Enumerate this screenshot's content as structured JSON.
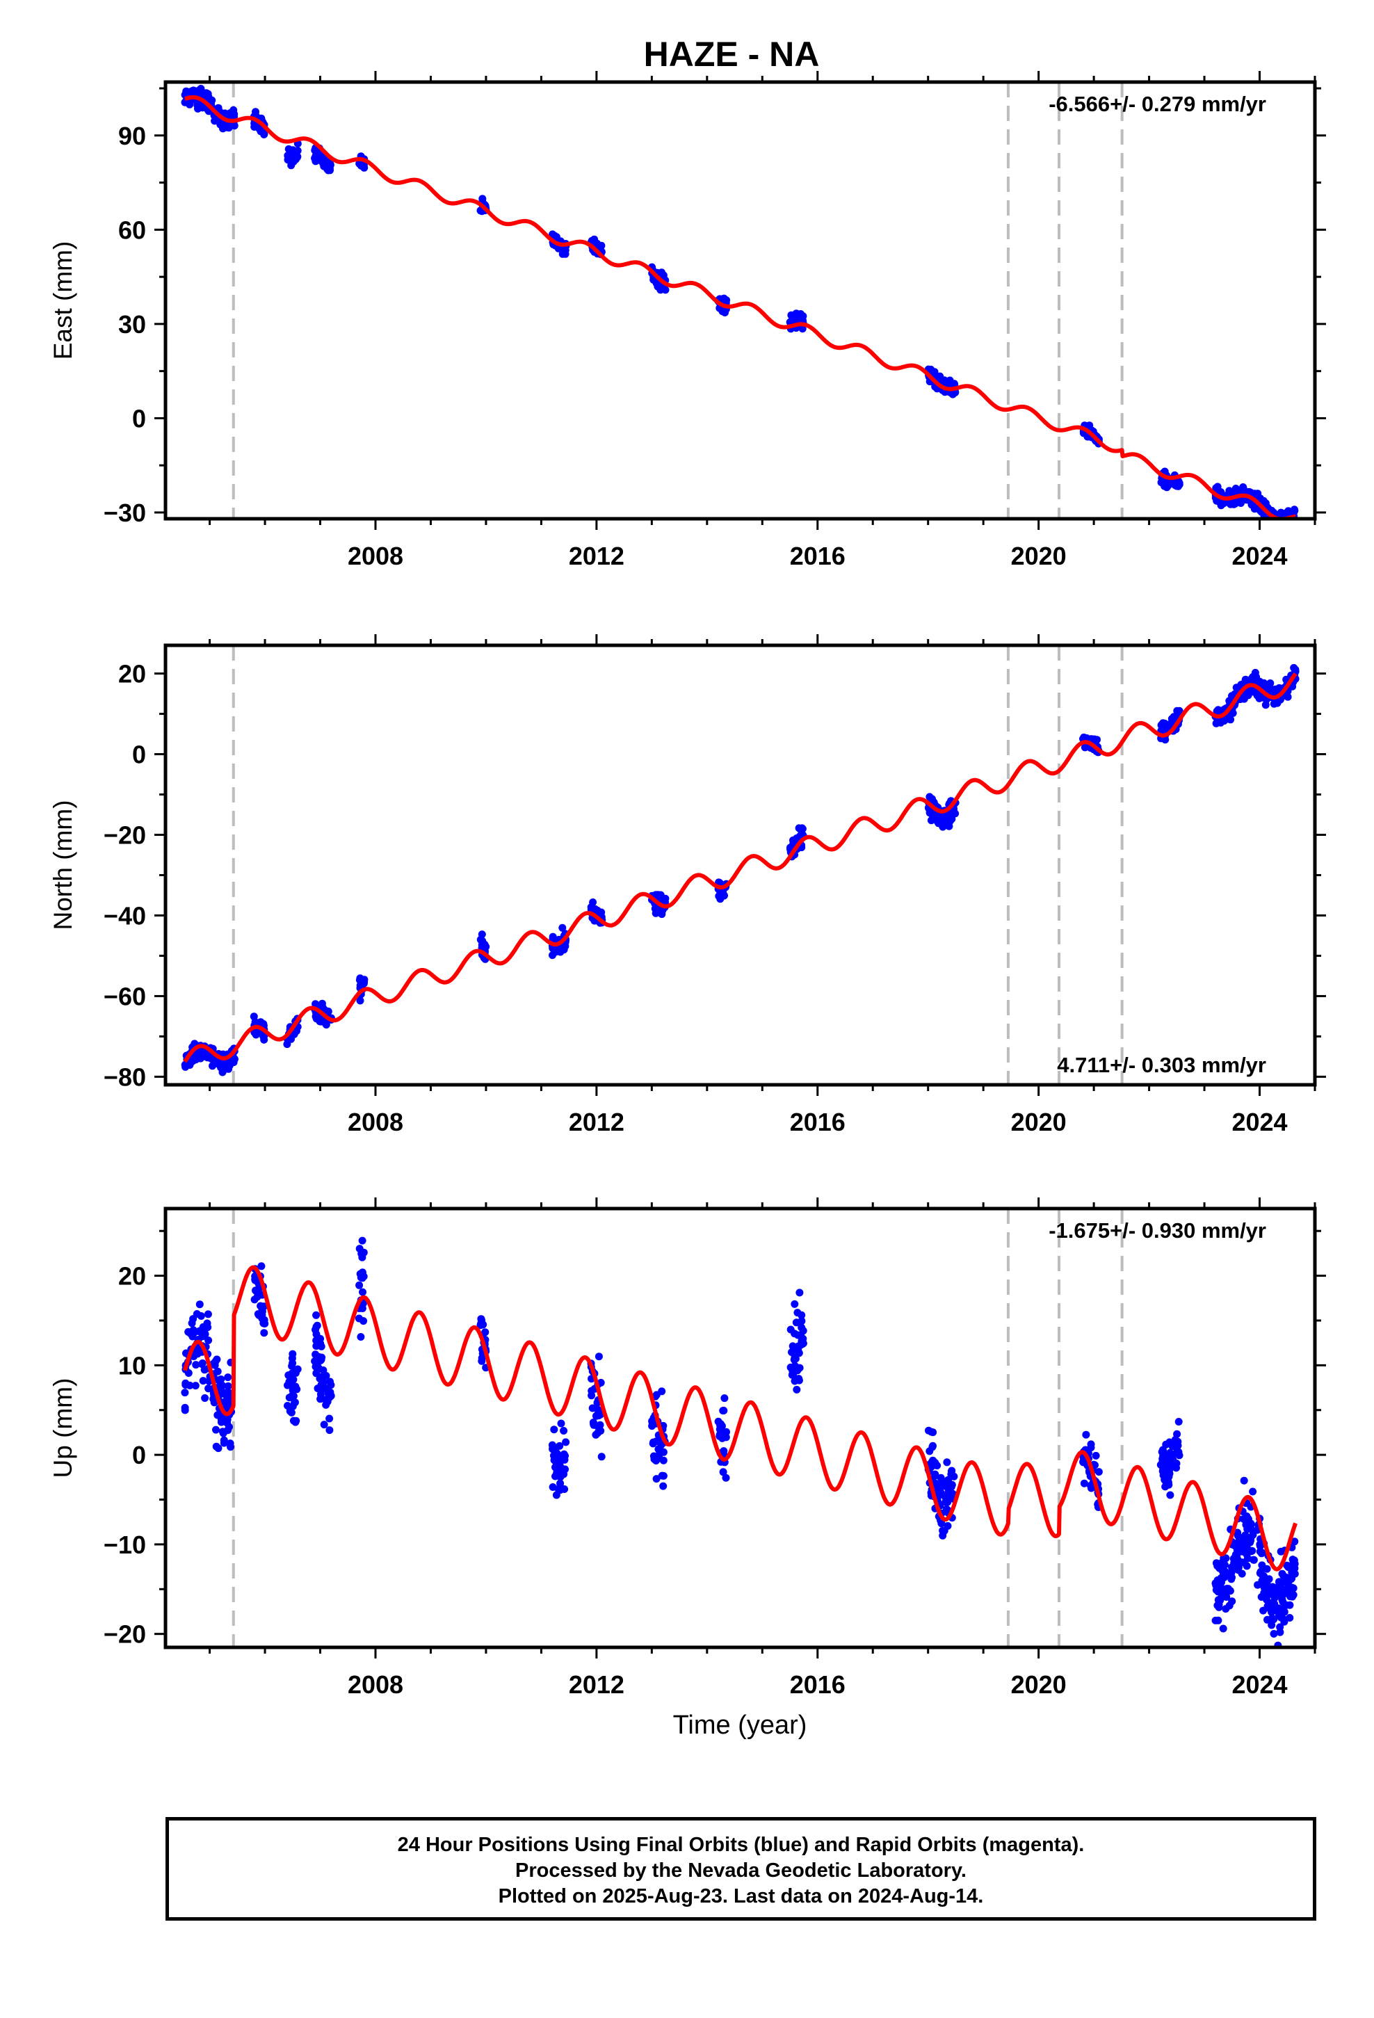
{
  "title": "HAZE - NA",
  "colors": {
    "data": "#0000ff",
    "model": "#ff0000",
    "events": "#bdbdbd",
    "frame": "#000000"
  },
  "x_tick_labels": [
    "2008",
    "2012",
    "2016",
    "2020",
    "2024"
  ],
  "xlabel": "Time (year)",
  "footer": {
    "line1": "24 Hour Positions Using Final Orbits (blue) and Rapid Orbits (magenta).",
    "line2": "Processed by the Nevada Geodetic Laboratory.",
    "line3": "Plotted on 2025-Aug-23. Last data on 2024-Aug-14."
  },
  "chart_data": [
    {
      "type": "scatter",
      "component": "east",
      "ylabel": "East (mm)",
      "rate_label": "-6.566+/- 0.279 mm/yr",
      "rate_label_position": "top-right",
      "xlim": [
        2004.2,
        2025.0
      ],
      "ylim": [
        -32,
        107
      ],
      "yticks": [
        -30,
        0,
        30,
        60,
        90
      ],
      "xticks": [
        2008,
        2012,
        2016,
        2020,
        2024
      ],
      "event_lines": [
        2005.43,
        2019.45,
        2020.37,
        2021.51
      ],
      "model": {
        "rate": -6.566,
        "value_at_2004_5": 102,
        "seasonal_amplitude": 1.8,
        "steps": [
          {
            "year": 2021.51,
            "offset": -2
          }
        ]
      },
      "series": [
        {
          "name": "",
          "kind": "daily positions (final orbits)",
          "clusters": [
            {
              "start": 2004.55,
              "end": 2005.45,
              "center_ref": 0,
              "scatter": 2.5
            },
            {
              "start": 2005.8,
              "end": 2006.0,
              "center_ref": 0,
              "scatter": 2
            },
            {
              "start": 2006.4,
              "end": 2006.6,
              "center_ref": -5,
              "scatter": 3
            },
            {
              "start": 2006.9,
              "end": 2007.2,
              "center_ref": -3,
              "scatter": 2
            },
            {
              "start": 2007.7,
              "end": 2007.8,
              "center_ref": -1,
              "scatter": 2
            },
            {
              "start": 2009.9,
              "end": 2010.0,
              "center_ref": 0,
              "scatter": 1.5
            },
            {
              "start": 2011.2,
              "end": 2011.45,
              "center_ref": 0,
              "scatter": 2
            },
            {
              "start": 2011.9,
              "end": 2012.1,
              "center_ref": 1,
              "scatter": 2
            },
            {
              "start": 2013.0,
              "end": 2013.25,
              "center_ref": 0,
              "scatter": 2.5
            },
            {
              "start": 2014.2,
              "end": 2014.35,
              "center_ref": 0,
              "scatter": 2
            },
            {
              "start": 2015.5,
              "end": 2015.75,
              "center_ref": 1,
              "scatter": 2
            },
            {
              "start": 2018.0,
              "end": 2018.5,
              "center_ref": 0,
              "scatter": 2
            },
            {
              "start": 2020.8,
              "end": 2021.1,
              "center_ref": 0,
              "scatter": 1.5
            },
            {
              "start": 2022.2,
              "end": 2022.55,
              "center_ref": -1,
              "scatter": 2
            },
            {
              "start": 2023.2,
              "end": 2024.65,
              "center_ref": 0,
              "scatter": 2
            }
          ]
        },
        {
          "name": "",
          "kind": "model fit"
        }
      ]
    },
    {
      "type": "scatter",
      "component": "north",
      "ylabel": "North (mm)",
      "rate_label": "4.711+/- 0.303 mm/yr",
      "rate_label_position": "bottom-right",
      "xlim": [
        2004.2,
        2025.0
      ],
      "ylim": [
        -82,
        27
      ],
      "yticks": [
        -80,
        -60,
        -40,
        -20,
        0,
        20
      ],
      "xticks": [
        2008,
        2012,
        2016,
        2020,
        2024
      ],
      "event_lines": [
        2005.43,
        2019.45,
        2020.37,
        2021.51
      ],
      "model": {
        "rate": 4.711,
        "value_at_2004_5": -76.5,
        "seasonal_amplitude": 2.6,
        "steps": []
      },
      "series": [
        {
          "name": "",
          "kind": "daily positions (final orbits)",
          "clusters": [
            {
              "start": 2004.55,
              "end": 2005.45,
              "center_ref": -1,
              "scatter": 2
            },
            {
              "start": 2005.8,
              "end": 2006.0,
              "center_ref": 0,
              "scatter": 2
            },
            {
              "start": 2006.4,
              "end": 2006.6,
              "center_ref": -1,
              "scatter": 2
            },
            {
              "start": 2006.9,
              "end": 2007.2,
              "center_ref": 0,
              "scatter": 2
            },
            {
              "start": 2007.7,
              "end": 2007.8,
              "center_ref": 1,
              "scatter": 2
            },
            {
              "start": 2009.9,
              "end": 2010.0,
              "center_ref": 1,
              "scatter": 2
            },
            {
              "start": 2011.2,
              "end": 2011.45,
              "center_ref": 0,
              "scatter": 2
            },
            {
              "start": 2011.9,
              "end": 2012.1,
              "center_ref": 0,
              "scatter": 2
            },
            {
              "start": 2013.0,
              "end": 2013.25,
              "center_ref": 0,
              "scatter": 2
            },
            {
              "start": 2014.2,
              "end": 2014.35,
              "center_ref": 0,
              "scatter": 2
            },
            {
              "start": 2015.5,
              "end": 2015.75,
              "center_ref": 1,
              "scatter": 2
            },
            {
              "start": 2018.0,
              "end": 2018.5,
              "center_ref": -1,
              "scatter": 2.5
            },
            {
              "start": 2020.8,
              "end": 2021.1,
              "center_ref": 0,
              "scatter": 1.5
            },
            {
              "start": 2022.2,
              "end": 2022.55,
              "center_ref": 1,
              "scatter": 2
            },
            {
              "start": 2023.2,
              "end": 2024.65,
              "center_ref": 0,
              "scatter": 2
            }
          ]
        },
        {
          "name": "",
          "kind": "model fit"
        }
      ]
    },
    {
      "type": "scatter",
      "component": "up",
      "ylabel": "Up (mm)",
      "rate_label": "-1.675+/- 0.930 mm/yr",
      "rate_label_position": "top-right",
      "xlim": [
        2004.2,
        2025.0
      ],
      "ylim": [
        -21.5,
        27.5
      ],
      "yticks": [
        -20,
        -10,
        0,
        10,
        20
      ],
      "xticks": [
        2008,
        2012,
        2016,
        2020,
        2024
      ],
      "event_lines": [
        2005.43,
        2019.45,
        2020.37,
        2021.51
      ],
      "model": {
        "rate": -1.675,
        "value_at_2004_5": 9.5,
        "seasonal_amplitude": 3.6,
        "steps": [
          {
            "year": 2005.43,
            "offset": 10
          },
          {
            "year": 2019.45,
            "offset": 1.5
          },
          {
            "year": 2020.37,
            "offset": 3
          }
        ]
      },
      "series": [
        {
          "name": "",
          "kind": "daily positions (final orbits)",
          "clusters": [
            {
              "start": 2004.55,
              "end": 2005.4,
              "center_ref": 0,
              "scatter": 4
            },
            {
              "start": 2005.8,
              "end": 2006.0,
              "center_ref": -2,
              "scatter": 3
            },
            {
              "start": 2006.4,
              "end": 2006.6,
              "center_ref": -8,
              "scatter": 4
            },
            {
              "start": 2006.9,
              "end": 2007.2,
              "center_ref": -6,
              "scatter": 4
            },
            {
              "start": 2007.7,
              "end": 2007.8,
              "center_ref": 2,
              "scatter": 4
            },
            {
              "start": 2009.9,
              "end": 2010.0,
              "center_ref": 0,
              "scatter": 2
            },
            {
              "start": 2011.2,
              "end": 2011.45,
              "center_ref": -6,
              "scatter": 3
            },
            {
              "start": 2011.9,
              "end": 2012.1,
              "center_ref": -2,
              "scatter": 4
            },
            {
              "start": 2013.0,
              "end": 2013.25,
              "center_ref": -2,
              "scatter": 4
            },
            {
              "start": 2014.2,
              "end": 2014.35,
              "center_ref": 2,
              "scatter": 4
            },
            {
              "start": 2015.5,
              "end": 2015.75,
              "center_ref": 10,
              "scatter": 4
            },
            {
              "start": 2018.0,
              "end": 2018.5,
              "center_ref": 2,
              "scatter": 3.5
            },
            {
              "start": 2020.8,
              "end": 2021.1,
              "center_ref": 0,
              "scatter": 2.5
            },
            {
              "start": 2022.2,
              "end": 2022.55,
              "center_ref": 8,
              "scatter": 3
            },
            {
              "start": 2023.2,
              "end": 2024.65,
              "center_ref": -4,
              "scatter": 3.5
            }
          ]
        },
        {
          "name": "",
          "kind": "model fit"
        }
      ]
    }
  ]
}
